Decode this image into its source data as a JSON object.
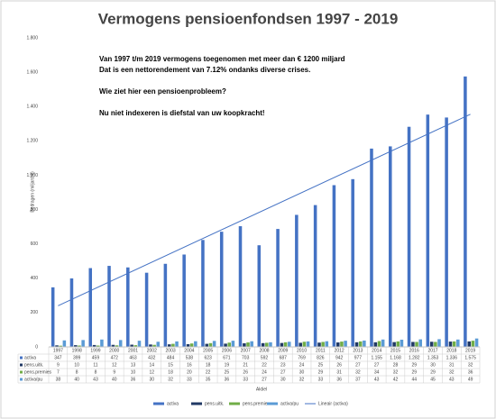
{
  "chart_data": {
    "type": "bar",
    "title": "Vermogens pensioenfondsen 1997 - 2019",
    "annotations": [
      "Van 1997 t/m 2019 vermogens toegenomen met meer dan € 1200 miljard",
      "Dat is een nettorendement van 7.12% ondanks diverse crises.",
      "Wie ziet hier een pensioenprobleem?",
      "Nu niet indexeren is diefstal van uw koopkracht!"
    ],
    "y_label": "Bedragen (miljard €)",
    "x_label": "Aktiel",
    "categories": [
      "1997",
      "1998",
      "1999",
      "2000",
      "2001",
      "2002",
      "2003",
      "2004",
      "2005",
      "2006",
      "2007",
      "2008",
      "2009",
      "2010",
      "2011",
      "2012",
      "2013",
      "2014",
      "2015",
      "2016",
      "2017",
      "2018",
      "2019"
    ],
    "series": [
      {
        "name": "activa",
        "color": "#4472c4",
        "values": [
          347,
          399,
          459,
          472,
          463,
          432,
          484,
          538,
          623,
          671,
          703,
          592,
          687,
          769,
          826,
          942,
          977,
          1155,
          1168,
          1282,
          1353,
          1336,
          1575
        ],
        "value_labels": [
          "347",
          "399",
          "459",
          "472",
          "463",
          "432",
          "484",
          "538",
          "623",
          "671",
          "703",
          "592",
          "687",
          "769",
          "826",
          "942",
          "977",
          "1.155",
          "1.168",
          "1.282",
          "1.353",
          "1.336",
          "1.575"
        ]
      },
      {
        "name": "pens.uitk.",
        "color": "#203864",
        "values": [
          9,
          10,
          11,
          12,
          13,
          14,
          15,
          16,
          18,
          19,
          21,
          22,
          23,
          24,
          25,
          26,
          27,
          27,
          28,
          29,
          30,
          31,
          32
        ]
      },
      {
        "name": "pens.premies",
        "color": "#70ad47",
        "values": [
          7,
          8,
          8,
          9,
          10,
          12,
          18,
          20,
          22,
          25,
          26,
          24,
          27,
          30,
          29,
          31,
          32,
          34,
          32,
          29,
          29,
          32,
          36
        ]
      },
      {
        "name": "activa/pu",
        "color": "#5b9bd5",
        "values": [
          38,
          40,
          43,
          40,
          36,
          30,
          32,
          33,
          35,
          36,
          33,
          27,
          30,
          32,
          33,
          36,
          37,
          43,
          42,
          44,
          45,
          43,
          49
        ]
      }
    ],
    "trendline": {
      "name": "Lineair (activa)",
      "color": "#4472c4",
      "start": 240,
      "end": 1355
    },
    "ylim": [
      0,
      1800
    ],
    "yticks": [
      0,
      200,
      400,
      600,
      800,
      {
        "value": 1000,
        "label": "1.000"
      },
      {
        "value": 1200,
        "label": "1.200"
      },
      {
        "value": 1400,
        "label": "1.400"
      },
      {
        "value": 1600,
        "label": "1.600"
      },
      {
        "value": 1800,
        "label": "1.800"
      }
    ],
    "grid": false
  }
}
